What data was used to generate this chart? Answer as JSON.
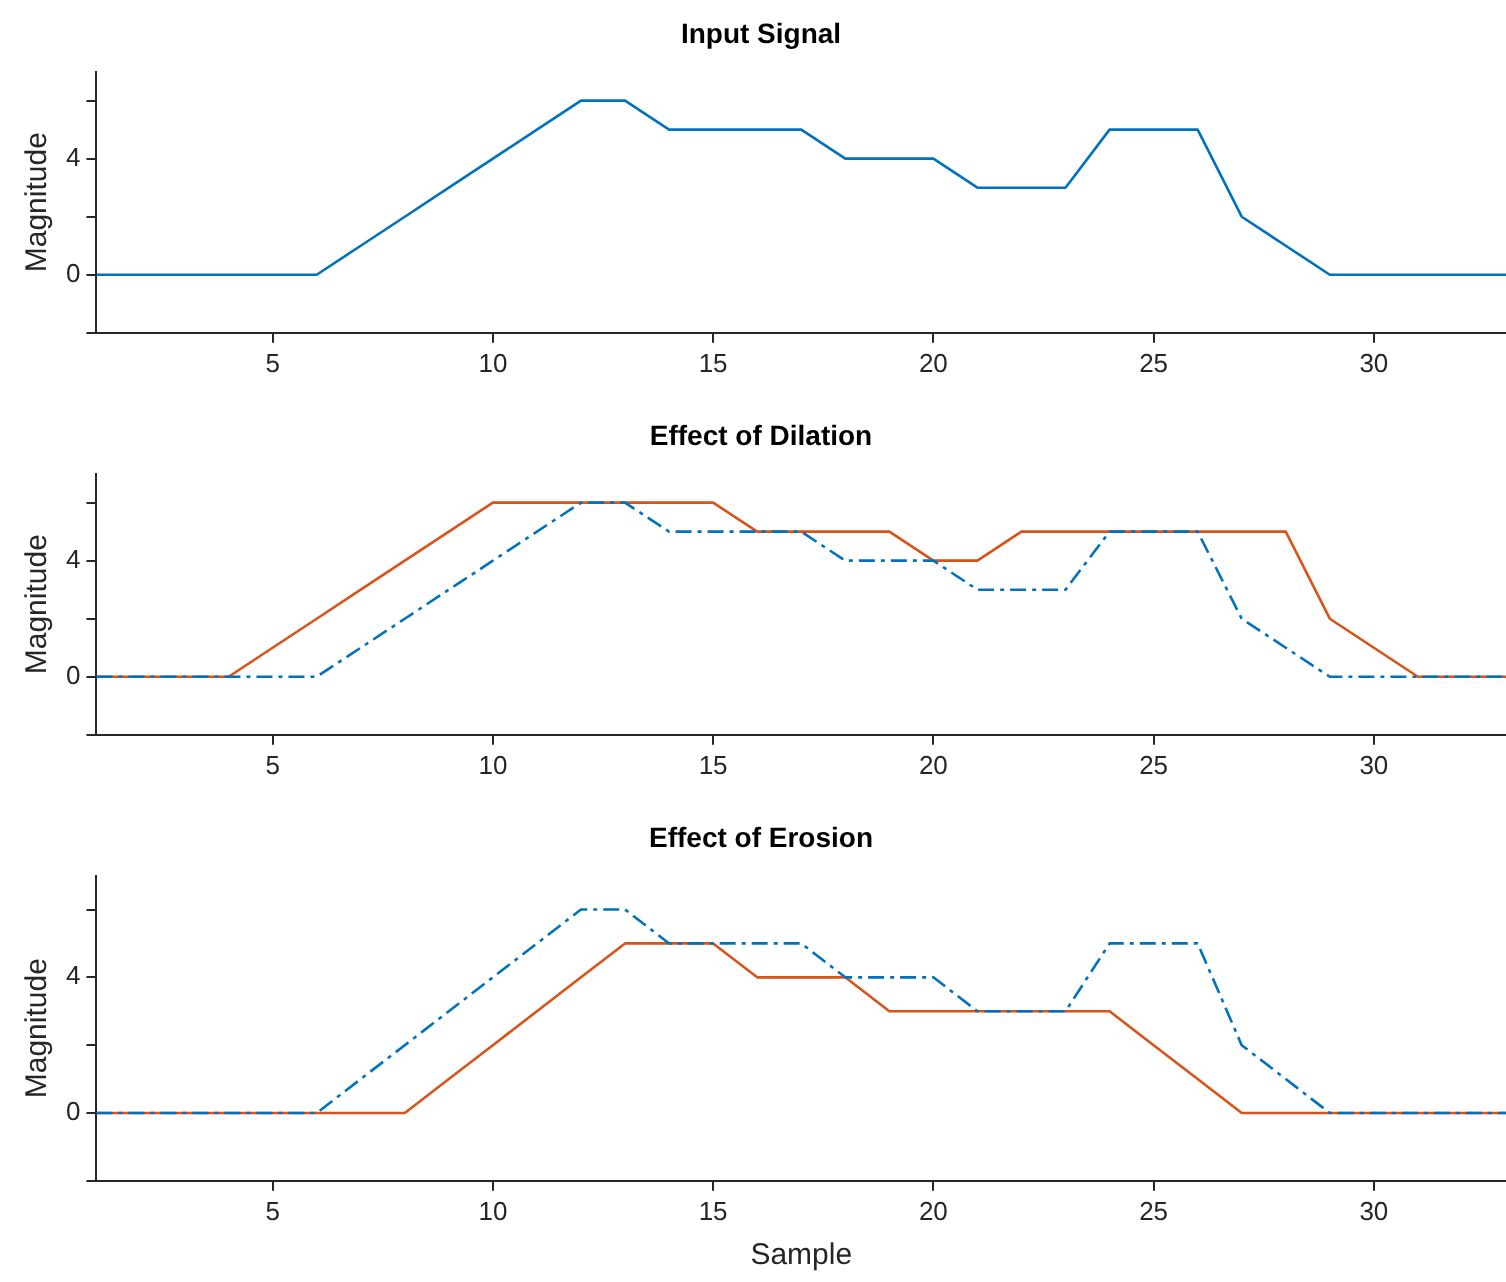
{
  "chart_data": [
    {
      "type": "line",
      "title": "Input Signal",
      "ylabel": "Magnitude",
      "x": [
        1,
        2,
        3,
        4,
        5,
        6,
        7,
        8,
        9,
        10,
        11,
        12,
        13,
        14,
        15,
        16,
        17,
        18,
        19,
        20,
        21,
        22,
        23,
        24,
        25,
        26,
        27,
        28,
        29,
        30,
        31,
        32,
        33
      ],
      "series": [
        {
          "color": "#0072bd",
          "line_style": "solid",
          "values": [
            0,
            0,
            0,
            0,
            0,
            0,
            1,
            2,
            3,
            4,
            5,
            6,
            6,
            5,
            5,
            5,
            5,
            4,
            4,
            4,
            3,
            3,
            3,
            5,
            5,
            5,
            2,
            1,
            0,
            0,
            0,
            0,
            0
          ]
        }
      ],
      "xlim": [
        1,
        33
      ],
      "xticks": [
        5,
        10,
        15,
        20,
        25,
        30
      ],
      "ylim": [
        -2,
        7
      ],
      "yticks": [
        {
          "value": -2,
          "label": null
        },
        {
          "value": 0,
          "label": "0"
        },
        {
          "value": 2,
          "label": null
        },
        {
          "value": 4,
          "label": "4"
        },
        {
          "value": 6,
          "label": null
        }
      ],
      "grid": false,
      "legend": false,
      "marker": "none"
    },
    {
      "type": "line",
      "title": "Effect of Dilation",
      "ylabel": "Magnitude",
      "x": [
        1,
        2,
        3,
        4,
        5,
        6,
        7,
        8,
        9,
        10,
        11,
        12,
        13,
        14,
        15,
        16,
        17,
        18,
        19,
        20,
        21,
        22,
        23,
        24,
        25,
        26,
        27,
        28,
        29,
        30,
        31,
        32,
        33
      ],
      "series": [
        {
          "color": "#0072bd",
          "line_style": "dashed",
          "values": [
            0,
            0,
            0,
            0,
            0,
            0,
            1,
            2,
            3,
            4,
            5,
            6,
            6,
            5,
            5,
            5,
            5,
            4,
            4,
            4,
            3,
            3,
            3,
            5,
            5,
            5,
            2,
            1,
            0,
            0,
            0,
            0,
            0
          ]
        },
        {
          "color": "#d95319",
          "line_style": "solid",
          "values": [
            0,
            0,
            0,
            0,
            1,
            2,
            3,
            4,
            5,
            6,
            6,
            6,
            6,
            6,
            6,
            5,
            5,
            5,
            5,
            4,
            4,
            5,
            5,
            5,
            5,
            5,
            5,
            5,
            2,
            1,
            0,
            0,
            0
          ]
        }
      ],
      "xlim": [
        1,
        33
      ],
      "xticks": [
        5,
        10,
        15,
        20,
        25,
        30
      ],
      "ylim": [
        -2,
        7
      ],
      "yticks": [
        {
          "value": -2,
          "label": null
        },
        {
          "value": 0,
          "label": "0"
        },
        {
          "value": 2,
          "label": null
        },
        {
          "value": 4,
          "label": "4"
        },
        {
          "value": 6,
          "label": null
        }
      ],
      "grid": false,
      "legend": false,
      "marker": "none"
    },
    {
      "type": "line",
      "title": "Effect of Erosion",
      "ylabel": "Magnitude",
      "xlabel": "Sample",
      "x": [
        1,
        2,
        3,
        4,
        5,
        6,
        7,
        8,
        9,
        10,
        11,
        12,
        13,
        14,
        15,
        16,
        17,
        18,
        19,
        20,
        21,
        22,
        23,
        24,
        25,
        26,
        27,
        28,
        29,
        30,
        31,
        32,
        33
      ],
      "series": [
        {
          "color": "#0072bd",
          "line_style": "dashed",
          "values": [
            0,
            0,
            0,
            0,
            0,
            0,
            1,
            2,
            3,
            4,
            5,
            6,
            6,
            5,
            5,
            5,
            5,
            4,
            4,
            4,
            3,
            3,
            3,
            5,
            5,
            5,
            2,
            1,
            0,
            0,
            0,
            0,
            0
          ]
        },
        {
          "color": "#d95319",
          "line_style": "solid",
          "values": [
            0,
            0,
            0,
            0,
            0,
            0,
            0,
            0,
            1,
            2,
            3,
            4,
            5,
            5,
            5,
            4,
            4,
            4,
            3,
            3,
            3,
            3,
            3,
            3,
            2,
            1,
            0,
            0,
            0,
            0,
            0,
            0,
            0
          ]
        }
      ],
      "xlim": [
        1,
        33
      ],
      "xticks": [
        5,
        10,
        15,
        20,
        25,
        30
      ],
      "ylim": [
        -2,
        7
      ],
      "yticks": [
        {
          "value": -2,
          "label": null
        },
        {
          "value": 0,
          "label": "0"
        },
        {
          "value": 2,
          "label": null
        },
        {
          "value": 4,
          "label": "4"
        },
        {
          "value": 6,
          "label": null
        }
      ],
      "grid": false,
      "legend": false,
      "marker": "none"
    }
  ]
}
